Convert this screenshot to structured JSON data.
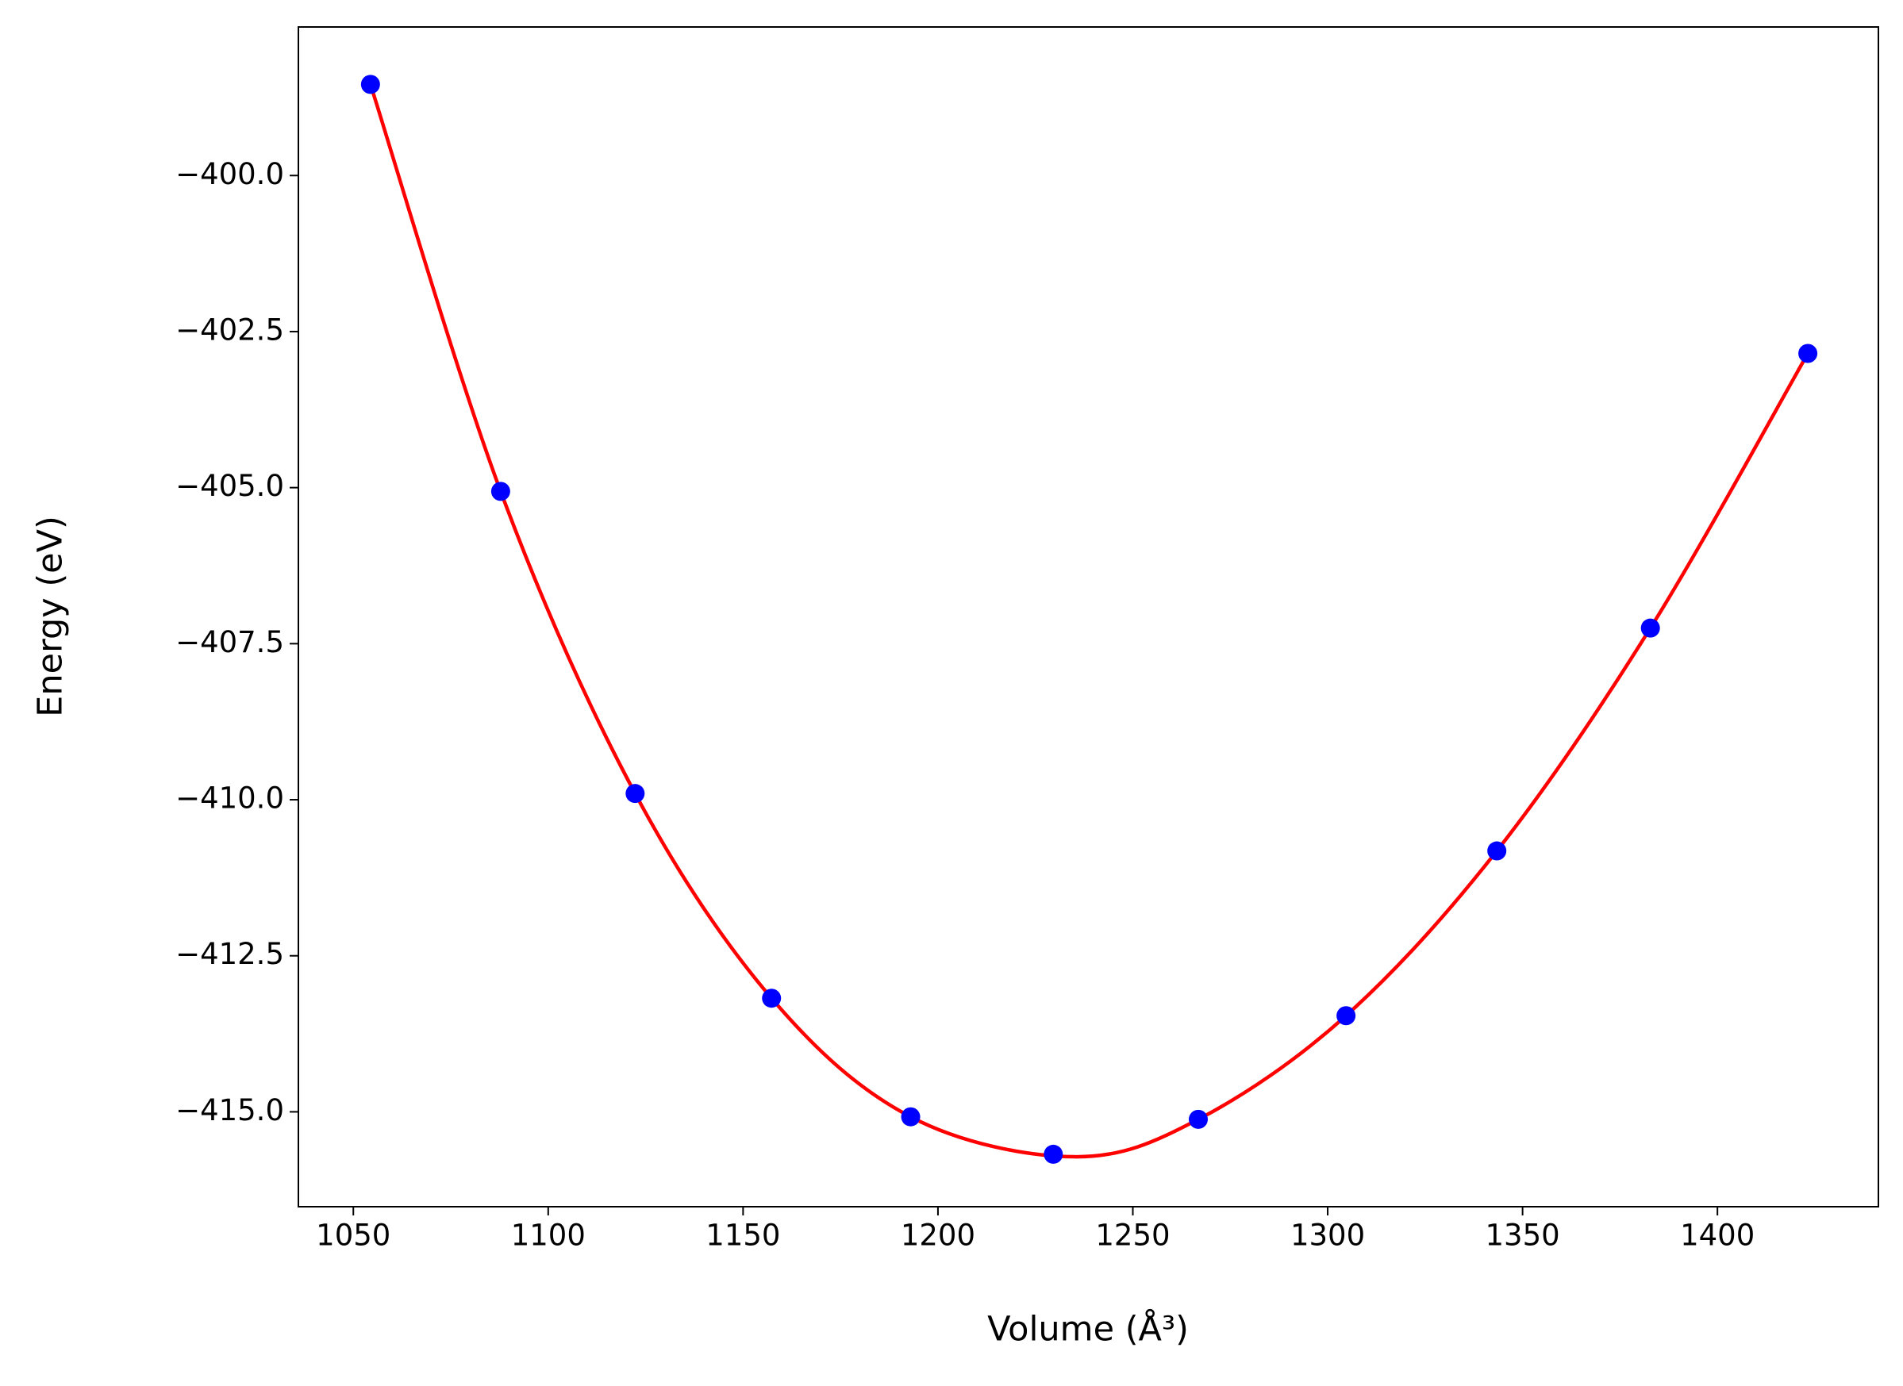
{
  "chart_data": {
    "type": "scatter",
    "xlabel": "Volume (Å³)",
    "ylabel": "Energy (eV)",
    "xlim": [
      1035.9,
      1441.3
    ],
    "ylim": [
      -416.52,
      -397.62
    ],
    "xticks": [
      1050,
      1100,
      1150,
      1200,
      1250,
      1300,
      1350,
      1400
    ],
    "yticks": [
      {
        "value": -400.0,
        "label": "−400.0"
      },
      {
        "value": -402.5,
        "label": "−402.5"
      },
      {
        "value": -405.0,
        "label": "−405.0"
      },
      {
        "value": -407.5,
        "label": "−407.5"
      },
      {
        "value": -410.0,
        "label": "−410.0"
      },
      {
        "value": -412.5,
        "label": "−412.5"
      },
      {
        "value": -415.0,
        "label": "−415.0"
      }
    ],
    "fit": {
      "color": "#ff0000",
      "x": [
        1054.4,
        1087.8,
        1122.3,
        1157.3,
        1193.0,
        1235.0,
        1266.8,
        1304.7,
        1343.4,
        1382.8,
        1423.2
      ],
      "values": [
        -398.54,
        -405.06,
        -409.9,
        -413.18,
        -415.08,
        -415.72,
        -415.12,
        -413.46,
        -410.82,
        -407.25,
        -402.85
      ]
    },
    "points": {
      "color": "#0000ff",
      "x": [
        1054.4,
        1087.8,
        1122.3,
        1157.3,
        1193.0,
        1229.6,
        1266.8,
        1304.7,
        1343.4,
        1382.8,
        1423.2
      ],
      "values": [
        -398.54,
        -405.06,
        -409.9,
        -413.18,
        -415.08,
        -415.68,
        -415.12,
        -413.46,
        -410.82,
        -407.25,
        -402.85
      ]
    }
  }
}
